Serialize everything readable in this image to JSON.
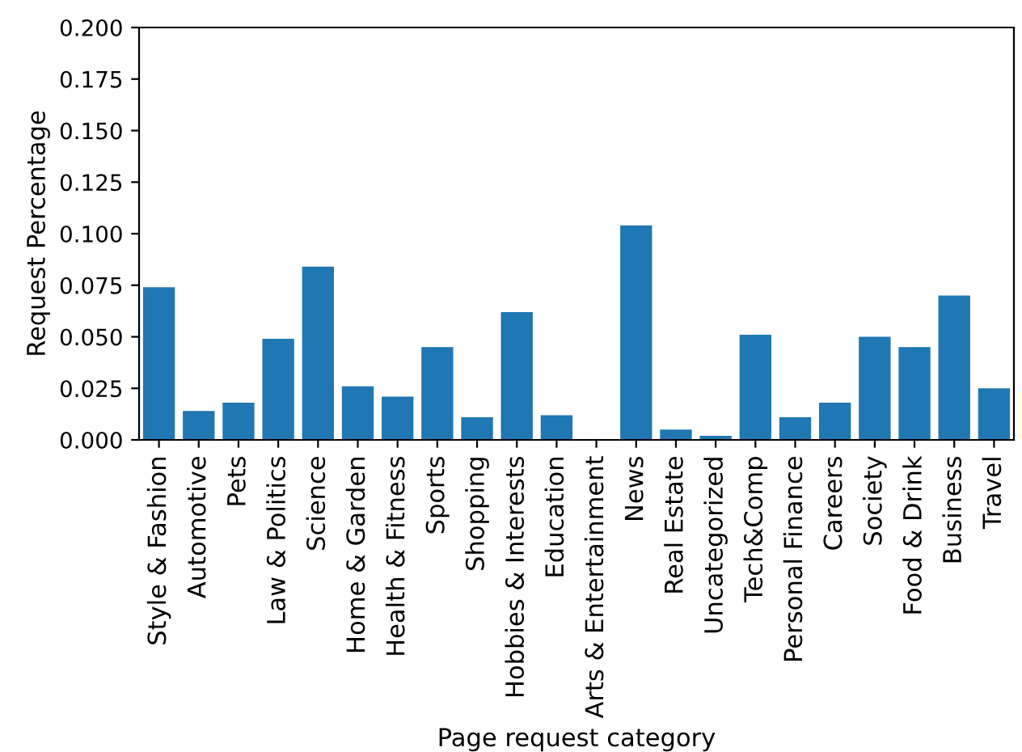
{
  "chart_data": {
    "type": "bar",
    "xlabel": "Page request category",
    "ylabel": "Request Percentage",
    "categories": [
      "Style & Fashion",
      "Automotive",
      "Pets",
      "Law & Politics",
      "Science",
      "Home & Garden",
      "Health & Fitness",
      "Sports",
      "Shopping",
      "Hobbies & Interests",
      "Education",
      "Arts & Entertainment",
      "News",
      "Real Estate",
      "Uncategorized",
      "Tech&Comp",
      "Personal Finance",
      "Careers",
      "Society",
      "Food & Drink",
      "Business",
      "Travel"
    ],
    "values": [
      0.074,
      0.014,
      0.018,
      0.049,
      0.084,
      0.026,
      0.021,
      0.045,
      0.011,
      0.062,
      0.012,
      0.0,
      0.104,
      0.005,
      0.002,
      0.051,
      0.011,
      0.018,
      0.05,
      0.045,
      0.07,
      0.025
    ],
    "color": "#1f77b4",
    "ylim": [
      0,
      0.2
    ],
    "yticks": [
      {
        "value": 0,
        "label": "0.000"
      },
      {
        "value": 0.025,
        "label": "0.025"
      },
      {
        "value": 0.05,
        "label": "0.050"
      },
      {
        "value": 0.075,
        "label": "0.075"
      },
      {
        "value": 0.1,
        "label": "0.100"
      },
      {
        "value": 0.125,
        "label": "0.125"
      },
      {
        "value": 0.15,
        "label": "0.150"
      },
      {
        "value": 0.175,
        "label": "0.175"
      },
      {
        "value": 0.2,
        "label": "0.200"
      }
    ],
    "grid": false
  }
}
